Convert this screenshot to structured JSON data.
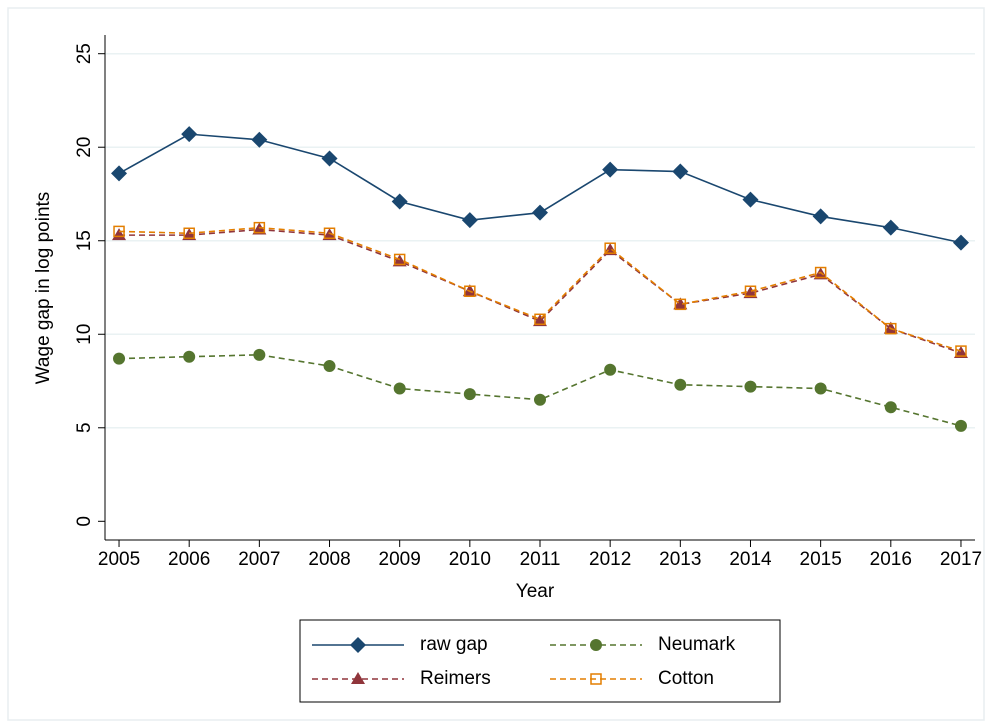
{
  "chart_data": {
    "type": "line",
    "x_label": "Year",
    "y_label": "Wage gap in log points",
    "x": [
      2005,
      2006,
      2007,
      2008,
      2009,
      2010,
      2011,
      2012,
      2013,
      2014,
      2015,
      2016,
      2017
    ],
    "series": [
      {
        "name": "raw gap",
        "color": "#1a476f",
        "marker": "diamond",
        "dashed": false,
        "values": [
          18.6,
          20.7,
          20.4,
          19.4,
          17.1,
          16.1,
          16.5,
          18.8,
          18.7,
          17.2,
          16.3,
          15.7,
          14.9
        ]
      },
      {
        "name": "Neumark",
        "color": "#55752f",
        "marker": "circle",
        "dashed": true,
        "values": [
          8.7,
          8.8,
          8.9,
          8.3,
          7.1,
          6.8,
          6.5,
          8.1,
          7.3,
          7.2,
          7.1,
          6.1,
          5.1
        ]
      },
      {
        "name": "Reimers",
        "color": "#90353b",
        "marker": "triangle",
        "dashed": true,
        "values": [
          15.3,
          15.3,
          15.6,
          15.3,
          13.9,
          12.3,
          10.7,
          14.5,
          11.6,
          12.2,
          13.2,
          10.3,
          9.0
        ]
      },
      {
        "name": "Cotton",
        "color": "#e37e00",
        "marker": "hollow-square",
        "dashed": true,
        "values": [
          15.5,
          15.4,
          15.7,
          15.4,
          14.0,
          12.3,
          10.8,
          14.6,
          11.6,
          12.3,
          13.3,
          10.3,
          9.1
        ]
      }
    ],
    "xlim": [
      2004.8,
      2017.2
    ],
    "xticks": [
      2005,
      2006,
      2007,
      2008,
      2009,
      2010,
      2011,
      2012,
      2013,
      2014,
      2015,
      2016,
      2017
    ],
    "ylim": [
      -1,
      26
    ],
    "yticks": [
      0,
      5,
      10,
      15,
      20,
      25
    ],
    "grid": true,
    "legend": "bottom"
  }
}
